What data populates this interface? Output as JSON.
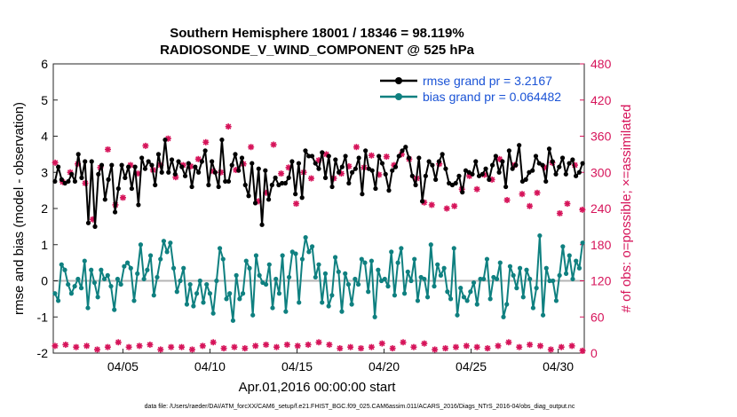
{
  "chart_data": {
    "type": "line",
    "title_line1": "Southern Hemisphere 18001 / 18346 = 98.119%",
    "title_line2": "RADIOSONDE_V_WIND_COMPONENT @ 525 hPa",
    "xlabel": "Apr.01,2016 00:00:00 start",
    "ylabel_left": "rmse and bias (model - observation)",
    "ylabel_right": "# of obs: o=possible; ×=assimilated",
    "footer": "data file: /Users/raeder/DAI/ATM_forcXX/CAM6_setup/f.e21.FHIST_BGC.f09_025.CAM6assim.011/ACARS_2016/Diags_NTrS_2016-04/obs_diag_output.nc",
    "xlim": [
      1,
      31.5
    ],
    "ylim_left": [
      -2,
      6
    ],
    "ylim_right": [
      0,
      480
    ],
    "x_ticks": [
      5,
      10,
      15,
      20,
      25,
      30
    ],
    "x_tick_labels": [
      "04/05",
      "04/10",
      "04/15",
      "04/20",
      "04/25",
      "04/30"
    ],
    "y_left_ticks": [
      "-2",
      "-1",
      "0",
      "1",
      "2",
      "3",
      "4",
      "5",
      "6"
    ],
    "y_right_ticks": [
      "0",
      "60",
      "120",
      "180",
      "240",
      "300",
      "360",
      "420",
      "480"
    ],
    "colors": {
      "rmse": "#000000",
      "bias": "#0f8080",
      "obs": "#d6145a",
      "legend_text": "#1a53d6",
      "zero_line": "#b4b4b4"
    },
    "series": [
      {
        "name": "rmse grand pr = 3.2167",
        "axis": "left",
        "values": [
          2.75,
          3.15,
          2.8,
          2.7,
          2.75,
          2.95,
          2.75,
          3.5,
          2.85,
          3.3,
          1.6,
          3.3,
          1.5,
          2.95,
          3.2,
          2.25,
          2.8,
          3.2,
          1.9,
          2.55,
          3.2,
          2.85,
          3.15,
          2.55,
          3.15,
          2.1,
          3.4,
          3.1,
          3.3,
          3.2,
          2.65,
          3.5,
          3.0,
          3.9,
          3.0,
          3.35,
          2.95,
          3.3,
          3.15,
          2.9,
          3.25,
          2.6,
          3.15,
          3.0,
          3.3,
          3.6,
          2.65,
          3.3,
          3.0,
          2.6,
          3.9,
          2.75,
          2.75,
          3.2,
          3.5,
          3.05,
          3.4,
          2.65,
          2.35,
          3.25,
          2.15,
          3.1,
          1.55,
          3.05,
          2.25,
          2.65,
          2.85,
          2.65,
          2.7,
          2.7,
          2.85,
          3.3,
          2.4,
          3.25,
          2.3,
          3.6,
          3.45,
          3.45,
          3.25,
          3.1,
          3.55,
          2.85,
          3.45,
          2.6,
          3.35,
          3.0,
          3.15,
          3.45,
          2.7,
          3.0,
          3.1,
          3.4,
          2.4,
          3.6,
          3.1,
          3.05,
          2.55,
          3.45,
          3.25,
          2.95,
          2.5,
          3.05,
          3.15,
          3.45,
          3.6,
          3.7,
          3.4,
          2.9,
          2.65,
          3.4,
          2.2,
          2.9,
          3.3,
          3.2,
          2.8,
          3.3,
          3.5,
          3.1,
          2.7,
          2.65,
          2.7,
          2.9,
          2.45,
          3.05,
          3.0,
          2.95,
          3.3,
          2.9,
          2.95,
          3.1,
          2.8,
          3.2,
          3.45,
          3.0,
          3.3,
          2.6,
          3.6,
          3.1,
          3.2,
          3.75,
          2.75,
          2.8,
          3.0,
          3.05,
          3.45,
          3.25,
          3.2,
          2.75,
          3.65,
          3.3,
          2.95,
          3.15,
          3.4,
          2.95,
          3.25,
          3.35,
          2.9,
          3.0,
          3.25
        ]
      },
      {
        "name": "bias grand pr = 0.064482",
        "axis": "left",
        "values": [
          -0.35,
          -0.55,
          0.45,
          0.3,
          -0.1,
          -0.35,
          -0.15,
          0.05,
          -0.2,
          0.55,
          -0.75,
          0.3,
          -0.05,
          -0.45,
          0.3,
          0.05,
          0.15,
          -0.15,
          -0.8,
          0.05,
          -0.1,
          0.4,
          0.5,
          0.35,
          -0.55,
          0.2,
          1.0,
          0.05,
          0.3,
          0.7,
          -0.4,
          0.1,
          0.6,
          1.1,
          0.8,
          1.05,
          0.35,
          -0.3,
          0.0,
          0.35,
          -0.65,
          -0.1,
          -0.7,
          -0.35,
          0.0,
          -0.6,
          -0.1,
          -0.35,
          -0.9,
          0.0,
          0.9,
          0.6,
          -0.5,
          -0.35,
          -1.1,
          0.15,
          -0.5,
          -0.35,
          0.55,
          0.35,
          -0.95,
          0.7,
          0.15,
          -0.05,
          -0.1,
          0.45,
          -0.75,
          0.05,
          -0.35,
          0.7,
          -0.85,
          0.1,
          0.8,
          0.75,
          -0.6,
          0.6,
          1.2,
          0.8,
          0.95,
          0.1,
          0.45,
          -0.6,
          0.2,
          -0.7,
          -0.4,
          0.65,
          0.25,
          -0.85,
          0.2,
          -0.1,
          -0.65,
          0.05,
          -0.1,
          0.6,
          0.5,
          -0.3,
          0.55,
          -1.0,
          0.3,
          0.0,
          0.05,
          -0.15,
          0.8,
          -0.4,
          0.5,
          0.9,
          -0.35,
          0.25,
          0.0,
          0.6,
          -0.55,
          0.1,
          0.05,
          -0.45,
          1.0,
          -0.15,
          0.45,
          0.15,
          0.35,
          -0.3,
          -0.5,
          0.9,
          -0.95,
          -0.2,
          -0.45,
          -0.55,
          -0.3,
          -0.05,
          -0.65,
          0.05,
          0.05,
          0.6,
          -0.5,
          0.1,
          0.05,
          0.5,
          -1.0,
          -0.65,
          0.4,
          0.15,
          -0.2,
          0.35,
          -0.45,
          0.3,
          0.05,
          -0.75,
          -0.2,
          1.25,
          -0.95,
          0.35,
          0.0,
          0.0,
          -0.55,
          0.15,
          0.95,
          0.2,
          0.7,
          0.05,
          0.55,
          0.35,
          1.05
        ]
      }
    ],
    "obs_assimilated": {
      "axis": "right",
      "low_band": [
        12,
        6,
        12,
        14,
        6,
        12,
        10,
        8,
        10,
        12,
        16,
        14,
        6,
        10,
        14,
        10,
        8,
        12,
        18,
        16,
        12,
        10,
        14,
        6,
        12,
        16,
        8,
        14,
        12,
        16,
        6,
        12,
        18,
        10,
        14,
        12,
        10,
        16,
        14,
        6,
        10,
        16,
        12,
        8,
        14,
        18,
        10,
        12,
        8,
        16,
        14,
        10,
        12,
        14,
        8,
        18,
        10,
        12,
        16,
        6,
        14,
        12,
        8,
        10,
        16,
        12,
        14,
        18,
        10,
        12,
        8,
        16,
        14,
        10,
        12,
        18,
        6,
        12,
        14,
        10,
        16,
        8,
        12,
        14,
        10,
        16,
        12,
        8,
        14,
        18,
        10,
        12,
        6,
        16,
        14,
        12,
        8,
        10,
        16,
        18,
        12,
        14,
        10,
        8,
        12,
        16,
        14,
        10,
        6,
        12,
        16,
        8,
        14,
        12,
        10,
        16,
        18,
        12,
        8,
        14,
        10,
        12,
        16,
        8,
        14,
        10,
        12,
        6,
        16,
        18,
        14,
        12,
        10,
        8,
        12,
        14,
        16,
        10,
        12,
        8,
        14,
        6,
        16,
        12,
        10,
        14,
        8,
        12,
        10,
        6,
        4
      ],
      "high_band": [
        316,
        248,
        284,
        234,
        300,
        292,
        314,
        296,
        282,
        312,
        222,
        254,
        308,
        306,
        338,
        262,
        246,
        288,
        258,
        236,
        312,
        318,
        298,
        290,
        344,
        230,
        304,
        326,
        312,
        306,
        356,
        242,
        292,
        296,
        312,
        330,
        310,
        312,
        322,
        278,
        350,
        264,
        302,
        316,
        300,
        322,
        376,
        330,
        304,
        310,
        314,
        286,
        342,
        300,
        252,
        334,
        266,
        322,
        346,
        354,
        298,
        318,
        308,
        296,
        248,
        334,
        300,
        262,
        290,
        328,
        320,
        316,
        330,
        248,
        290,
        242,
        298,
        306,
        310,
        304,
        342,
        256,
        308,
        316,
        328,
        300,
        296,
        330,
        326,
        346,
        312,
        264,
        330,
        270,
        322,
        306,
        290,
        246,
        250,
        318,
        246,
        320,
        314,
        250,
        240,
        264,
        244,
        306,
        272,
        248,
        294,
        306,
        272,
        254,
        296,
        312,
        288,
        250,
        322,
        300,
        254,
        292,
        312,
        240,
        264,
        226,
        244,
        266,
        266,
        248,
        308,
        300,
        316,
        238,
        232,
        256,
        248,
        228,
        312,
        296,
        238
      ]
    }
  }
}
